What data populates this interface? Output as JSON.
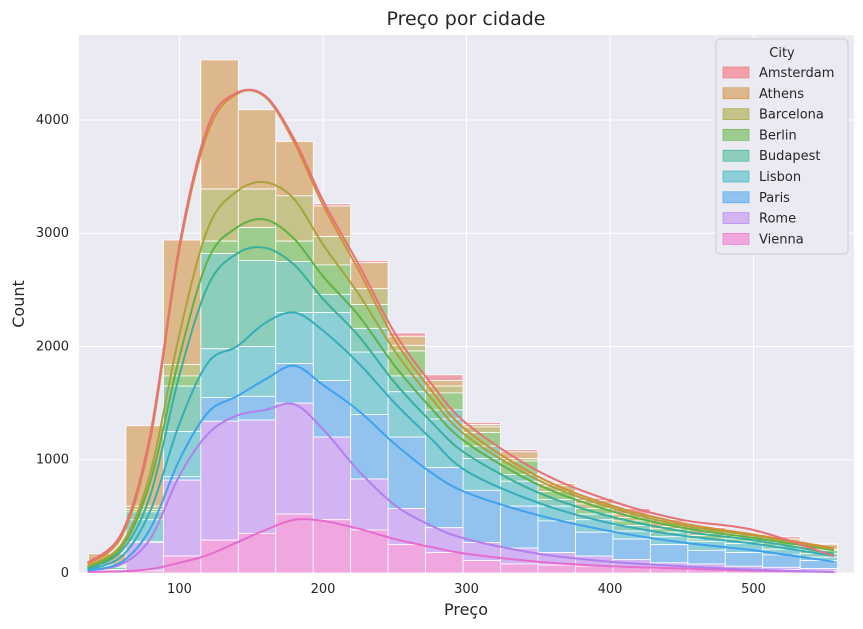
{
  "chart_data": {
    "type": "bar",
    "subtype": "stacked histogram with KDE",
    "title": "Preço por cidade",
    "xlabel": "Preço",
    "ylabel": "Count",
    "xlim": [
      30,
      570
    ],
    "ylim": [
      0,
      4750
    ],
    "xticks": [
      100,
      200,
      300,
      400,
      500
    ],
    "yticks": [
      0,
      1000,
      2000,
      3000,
      4000
    ],
    "grid": true,
    "legend": {
      "title": "City",
      "position": "top-right"
    },
    "bin_edges": [
      36.6,
      62.7,
      88.8,
      114.9,
      141.0,
      167.1,
      193.2,
      219.3,
      245.4,
      271.5,
      297.6,
      323.7,
      349.8,
      375.9,
      402.0,
      428.1,
      454.2,
      480.3,
      506.4,
      532.5,
      558.6
    ],
    "cumulative_tops": [
      {
        "city": "Vienna",
        "values": [
          0,
          20,
          150,
          290,
          350,
          520,
          470,
          380,
          250,
          180,
          110,
          80,
          70,
          60,
          50,
          40,
          30,
          30,
          30,
          20
        ]
      },
      {
        "city": "Rome",
        "values": [
          0,
          270,
          820,
          1340,
          1350,
          1500,
          1200,
          830,
          570,
          400,
          270,
          220,
          180,
          150,
          120,
          90,
          80,
          60,
          50,
          40
        ]
      },
      {
        "city": "Paris",
        "values": [
          20,
          280,
          850,
          1550,
          1560,
          1850,
          1700,
          1400,
          1200,
          930,
          730,
          590,
          460,
          360,
          300,
          250,
          200,
          180,
          160,
          110
        ]
      },
      {
        "city": "Lisbon",
        "values": [
          30,
          470,
          1250,
          1980,
          2000,
          2300,
          2300,
          1950,
          1600,
          1360,
          1010,
          810,
          590,
          470,
          370,
          320,
          280,
          260,
          210,
          140
        ]
      },
      {
        "city": "Budapest",
        "values": [
          50,
          540,
          1650,
          2820,
          2760,
          2750,
          2460,
          2160,
          1740,
          1440,
          1120,
          870,
          650,
          520,
          420,
          360,
          300,
          280,
          240,
          170
        ]
      },
      {
        "city": "Berlin",
        "values": [
          60,
          560,
          1740,
          2930,
          3050,
          2930,
          2720,
          2370,
          1960,
          1590,
          1240,
          990,
          720,
          570,
          460,
          390,
          330,
          300,
          270,
          200
        ]
      },
      {
        "city": "Barcelona",
        "values": [
          70,
          590,
          1840,
          3390,
          3390,
          3330,
          2970,
          2510,
          2010,
          1650,
          1290,
          1010,
          770,
          610,
          490,
          410,
          350,
          320,
          280,
          210
        ]
      },
      {
        "city": "Athens",
        "values": [
          170,
          1300,
          2940,
          4530,
          4090,
          3810,
          3240,
          2740,
          2090,
          1700,
          1310,
          1070,
          790,
          640,
          520,
          450,
          380,
          340,
          300,
          250
        ]
      },
      {
        "city": "Amsterdam",
        "values": [
          170,
          1300,
          2940,
          4530,
          4090,
          3810,
          3260,
          2760,
          2120,
          1750,
          1330,
          1090,
          800,
          660,
          570,
          470,
          400,
          350,
          320,
          260
        ]
      }
    ],
    "kde_curves": [
      {
        "city": "Vienna",
        "x": [
          36,
          60,
          80,
          100,
          120,
          140,
          160,
          180,
          200,
          225,
          250,
          275,
          300,
          350,
          400,
          450,
          500,
          556
        ],
        "y": [
          10,
          15,
          35,
          90,
          160,
          270,
          380,
          470,
          460,
          390,
          300,
          230,
          170,
          100,
          60,
          40,
          20,
          10
        ]
      },
      {
        "city": "Rome",
        "x": [
          36,
          60,
          80,
          100,
          120,
          140,
          160,
          180,
          200,
          225,
          250,
          275,
          300,
          350,
          400,
          450,
          500,
          556
        ],
        "y": [
          20,
          80,
          310,
          860,
          1230,
          1390,
          1440,
          1490,
          1270,
          900,
          600,
          420,
          300,
          170,
          100,
          60,
          30,
          10
        ]
      },
      {
        "city": "Paris",
        "x": [
          36,
          60,
          80,
          100,
          120,
          140,
          160,
          180,
          200,
          225,
          250,
          275,
          300,
          350,
          400,
          450,
          500,
          556
        ],
        "y": [
          20,
          100,
          400,
          1000,
          1420,
          1560,
          1710,
          1830,
          1660,
          1430,
          1140,
          890,
          710,
          510,
          370,
          270,
          200,
          100
        ]
      },
      {
        "city": "Lisbon",
        "x": [
          36,
          60,
          80,
          100,
          120,
          140,
          160,
          180,
          200,
          225,
          250,
          275,
          300,
          350,
          400,
          450,
          500,
          556
        ],
        "y": [
          30,
          150,
          560,
          1320,
          1860,
          2000,
          2210,
          2300,
          2140,
          1850,
          1500,
          1190,
          900,
          620,
          440,
          330,
          260,
          150
        ]
      },
      {
        "city": "Budapest",
        "x": [
          36,
          60,
          80,
          100,
          120,
          140,
          160,
          180,
          200,
          225,
          250,
          275,
          300,
          350,
          400,
          450,
          500,
          556
        ],
        "y": [
          40,
          200,
          700,
          1750,
          2540,
          2820,
          2870,
          2720,
          2420,
          2090,
          1680,
          1340,
          1050,
          710,
          500,
          370,
          290,
          170
        ]
      },
      {
        "city": "Berlin",
        "x": [
          36,
          60,
          80,
          100,
          120,
          140,
          160,
          180,
          200,
          225,
          250,
          275,
          300,
          350,
          400,
          450,
          500,
          556
        ],
        "y": [
          50,
          230,
          820,
          1910,
          2770,
          3050,
          3120,
          2950,
          2620,
          2270,
          1830,
          1460,
          1150,
          780,
          550,
          400,
          310,
          200
        ]
      },
      {
        "city": "Barcelona",
        "x": [
          36,
          60,
          80,
          100,
          120,
          140,
          160,
          180,
          200,
          225,
          250,
          275,
          300,
          350,
          400,
          450,
          500,
          556
        ],
        "y": [
          60,
          260,
          900,
          2110,
          3050,
          3370,
          3450,
          3300,
          2900,
          2460,
          1960,
          1550,
          1210,
          820,
          580,
          420,
          330,
          210
        ]
      },
      {
        "city": "Athens",
        "x": [
          36,
          60,
          80,
          100,
          120,
          140,
          160,
          180,
          200,
          225,
          250,
          275,
          300,
          350,
          400,
          450,
          500,
          556
        ],
        "y": [
          80,
          330,
          1200,
          2860,
          3900,
          4230,
          4200,
          3800,
          3250,
          2670,
          2060,
          1620,
          1260,
          850,
          600,
          440,
          340,
          220
        ]
      },
      {
        "city": "Amsterdam",
        "x": [
          36,
          60,
          80,
          100,
          120,
          140,
          160,
          180,
          200,
          225,
          250,
          275,
          300,
          350,
          400,
          450,
          500,
          556
        ],
        "y": [
          90,
          360,
          1250,
          2900,
          3950,
          4240,
          4210,
          3830,
          3290,
          2720,
          2120,
          1680,
          1320,
          900,
          640,
          470,
          380,
          150
        ]
      }
    ],
    "series": [
      {
        "name": "Amsterdam",
        "color": "#f0a0ab",
        "line_color": "#e87079"
      },
      {
        "name": "Athens",
        "color": "#deb88d",
        "line_color": "#d28f38"
      },
      {
        "name": "Barcelona",
        "color": "#c5c28a",
        "line_color": "#a8a43a"
      },
      {
        "name": "Berlin",
        "color": "#9dcd8d",
        "line_color": "#5fb244"
      },
      {
        "name": "Budapest",
        "color": "#8ccdbc",
        "line_color": "#38b09a"
      },
      {
        "name": "Lisbon",
        "color": "#8dcfd7",
        "line_color": "#36adb8"
      },
      {
        "name": "Paris",
        "color": "#92c2ee",
        "line_color": "#3fa2ee"
      },
      {
        "name": "Rome",
        "color": "#d2b4f3",
        "line_color": "#b27ef0"
      },
      {
        "name": "Vienna",
        "color": "#f0a6df",
        "line_color": "#e66cce"
      }
    ]
  }
}
